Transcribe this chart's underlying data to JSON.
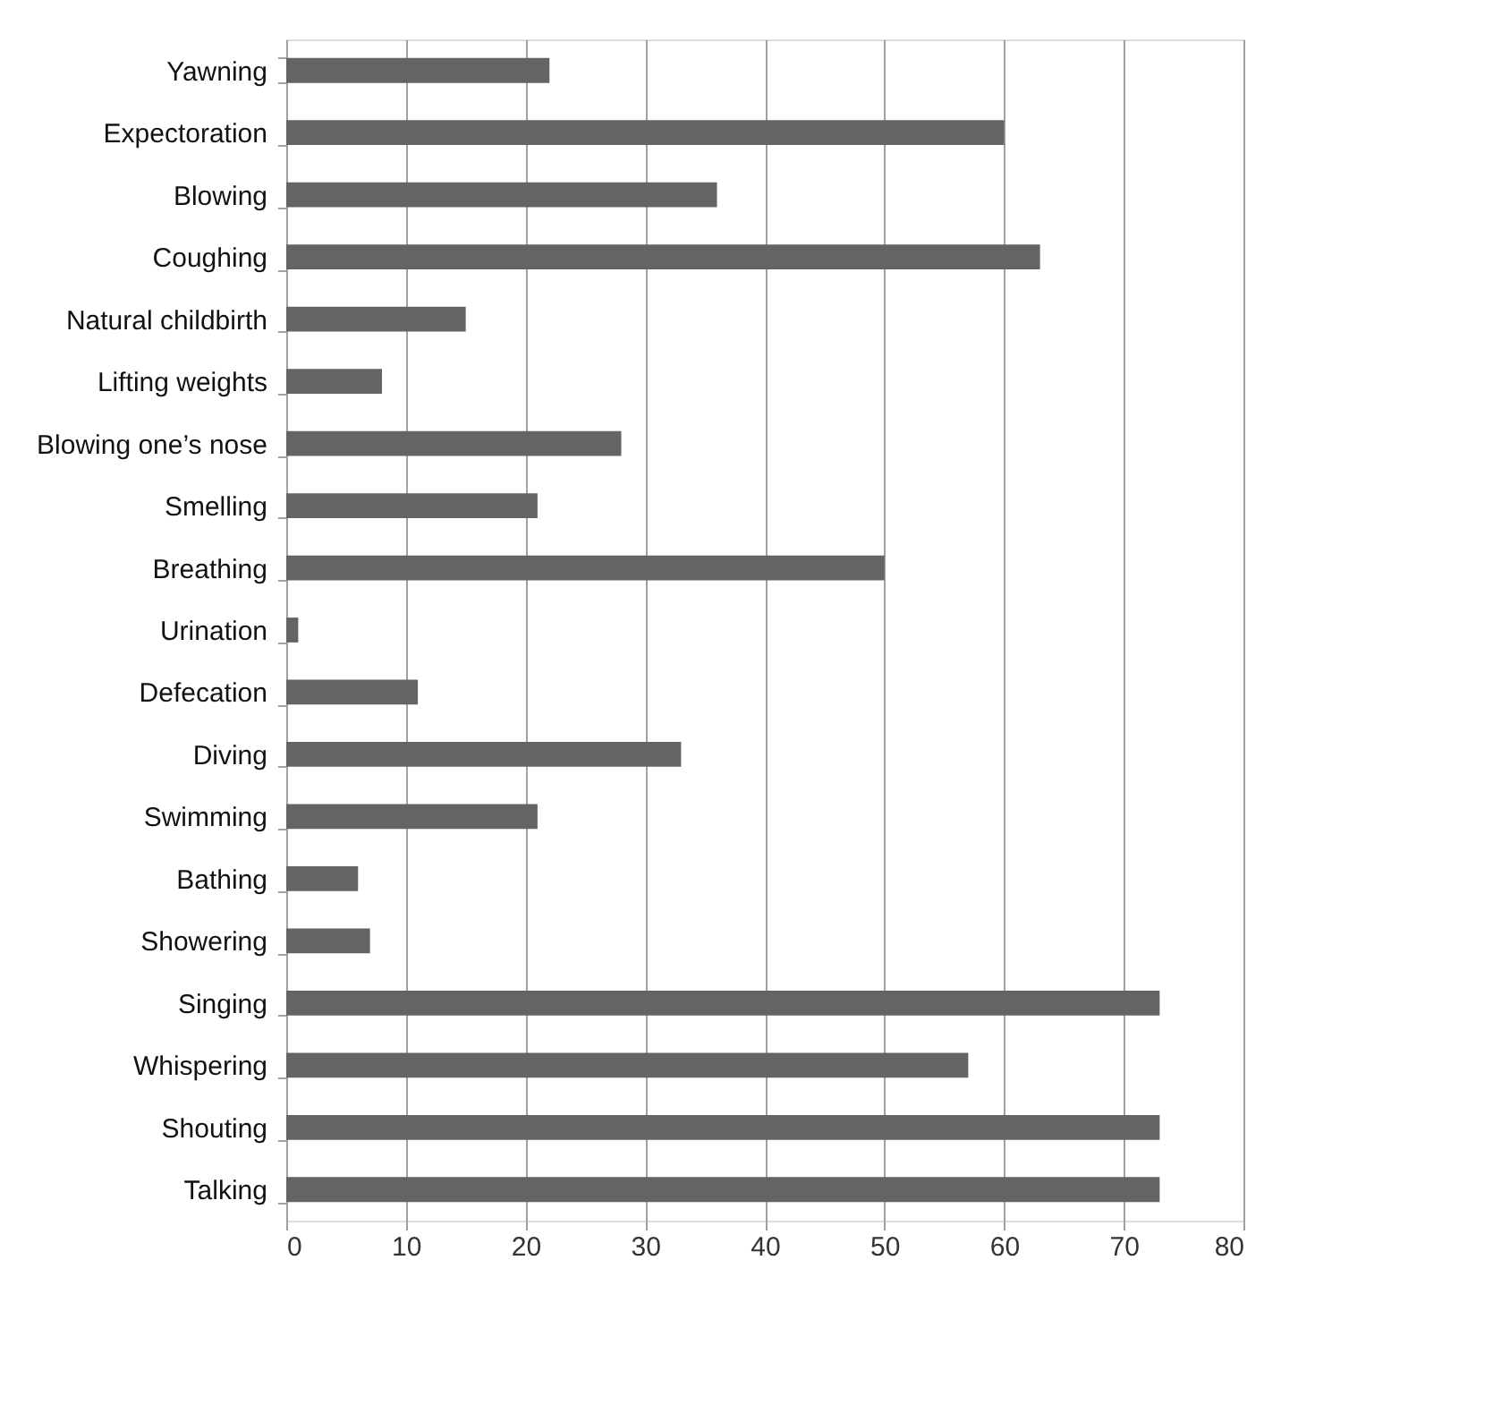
{
  "chart_data": {
    "type": "bar",
    "orientation": "horizontal",
    "categories": [
      "Yawning",
      "Expectoration",
      "Blowing",
      "Coughing",
      "Natural childbirth",
      "Lifting weights",
      "Blowing one’s nose",
      "Smelling",
      "Breathing",
      "Urination",
      "Defecation",
      "Diving",
      "Swimming",
      "Bathing",
      "Showering",
      "Singing",
      "Whispering",
      "Shouting",
      "Talking"
    ],
    "values": [
      22,
      60,
      36,
      63,
      15,
      8,
      28,
      21,
      50,
      1,
      11,
      33,
      21,
      6,
      7,
      73,
      57,
      73,
      73
    ],
    "color": "#646467",
    "xlim": [
      0,
      80
    ],
    "xticks": [
      0,
      10,
      20,
      30,
      40,
      50,
      60,
      70,
      80
    ],
    "grid": "x"
  }
}
